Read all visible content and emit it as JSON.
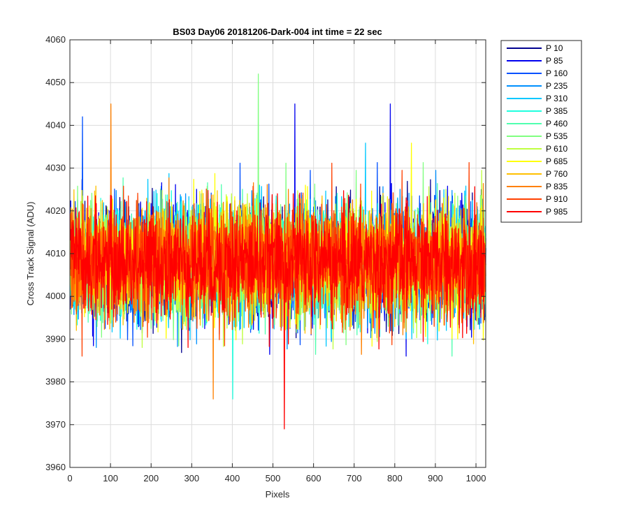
{
  "chart_data": {
    "type": "line",
    "title": "BS03 Day06 20181206-Dark-004 int time = 22 sec",
    "xlabel": "Pixels",
    "ylabel": "Cross Track Signal (ADU)",
    "xlim": [
      0,
      1024
    ],
    "ylim": [
      3960,
      4060
    ],
    "xticks": [
      0,
      100,
      200,
      300,
      400,
      500,
      600,
      700,
      800,
      900,
      1000
    ],
    "yticks": [
      3960,
      3970,
      3980,
      3990,
      4000,
      4010,
      4020,
      4030,
      4040,
      4050,
      4060
    ],
    "grid": true,
    "legend_position": "outside-top-right",
    "noise_mean": 4008,
    "noise_std": 6.5,
    "series": [
      {
        "name": "P 10",
        "color": "#00008f"
      },
      {
        "name": "P 85",
        "color": "#0000ef"
      },
      {
        "name": "P 160",
        "color": "#0050ff"
      },
      {
        "name": "P 235",
        "color": "#0090ff"
      },
      {
        "name": "P 310",
        "color": "#00c8ff"
      },
      {
        "name": "P 385",
        "color": "#20ffdf"
      },
      {
        "name": "P 460",
        "color": "#50ffaf"
      },
      {
        "name": "P 535",
        "color": "#80ff80"
      },
      {
        "name": "P 610",
        "color": "#bfff40"
      },
      {
        "name": "P 685",
        "color": "#ffff00"
      },
      {
        "name": "P 760",
        "color": "#ffc000"
      },
      {
        "name": "P 835",
        "color": "#ff8000"
      },
      {
        "name": "P 910",
        "color": "#ff4000"
      },
      {
        "name": "P 985",
        "color": "#ff0000"
      }
    ],
    "annotated_extremes": [
      {
        "series": "P 535",
        "x": 463,
        "y": 4052
      },
      {
        "series": "P 835",
        "x": 100,
        "y": 4045
      },
      {
        "series": "P 985",
        "x": 527,
        "y": 3969
      },
      {
        "series": "P 835",
        "x": 352,
        "y": 3976
      },
      {
        "series": "P 385",
        "x": 400,
        "y": 3976
      },
      {
        "series": "P 85",
        "x": 553,
        "y": 4045
      },
      {
        "series": "P 85",
        "x": 788,
        "y": 4045
      },
      {
        "series": "P 160",
        "x": 30,
        "y": 4042
      }
    ]
  }
}
